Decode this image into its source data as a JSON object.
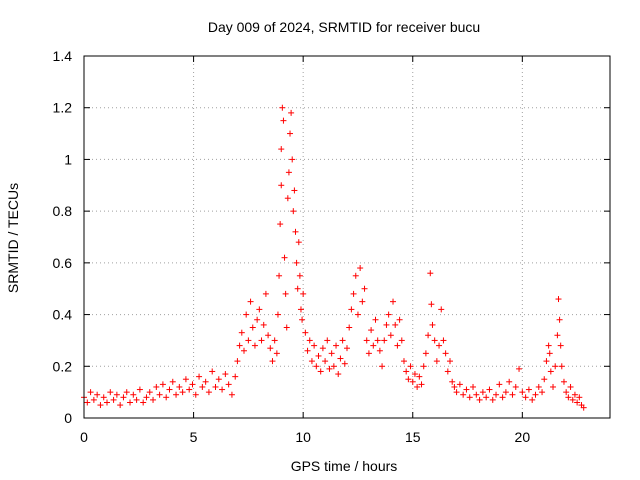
{
  "chart_data": {
    "type": "scatter",
    "title": "Day 009 of 2024, SRMTID for receiver bucu",
    "xlabel": "GPS time / hours",
    "ylabel": "SRMTID / TECUs",
    "xlim": [
      0,
      24
    ],
    "ylim": [
      0,
      1.4
    ],
    "xticks": [
      0,
      5,
      10,
      15,
      20
    ],
    "xtick_labels": [
      "0",
      "5",
      "10",
      "15",
      "20"
    ],
    "yticks": [
      0,
      0.2,
      0.4,
      0.6,
      0.8,
      1,
      1.2,
      1.4
    ],
    "ytick_labels": [
      "0",
      "0.2",
      "0.4",
      "0.6",
      "0.8",
      "1",
      "1.2",
      "1.4"
    ],
    "grid": true,
    "marker": "+",
    "color": "#ff0000",
    "series": [
      {
        "name": "SRMTID",
        "points": [
          [
            0.0,
            0.08
          ],
          [
            0.15,
            0.06
          ],
          [
            0.3,
            0.1
          ],
          [
            0.45,
            0.07
          ],
          [
            0.6,
            0.09
          ],
          [
            0.75,
            0.05
          ],
          [
            0.9,
            0.08
          ],
          [
            1.05,
            0.06
          ],
          [
            1.2,
            0.1
          ],
          [
            1.35,
            0.07
          ],
          [
            1.5,
            0.09
          ],
          [
            1.65,
            0.05
          ],
          [
            1.8,
            0.08
          ],
          [
            1.95,
            0.1
          ],
          [
            2.1,
            0.06
          ],
          [
            2.25,
            0.09
          ],
          [
            2.4,
            0.07
          ],
          [
            2.55,
            0.11
          ],
          [
            2.7,
            0.06
          ],
          [
            2.85,
            0.08
          ],
          [
            3.0,
            0.1
          ],
          [
            3.15,
            0.07
          ],
          [
            3.3,
            0.12
          ],
          [
            3.45,
            0.09
          ],
          [
            3.6,
            0.13
          ],
          [
            3.75,
            0.08
          ],
          [
            3.9,
            0.11
          ],
          [
            4.05,
            0.14
          ],
          [
            4.2,
            0.09
          ],
          [
            4.35,
            0.12
          ],
          [
            4.5,
            0.1
          ],
          [
            4.65,
            0.15
          ],
          [
            4.8,
            0.11
          ],
          [
            4.95,
            0.13
          ],
          [
            5.1,
            0.09
          ],
          [
            5.25,
            0.16
          ],
          [
            5.4,
            0.12
          ],
          [
            5.55,
            0.14
          ],
          [
            5.7,
            0.1
          ],
          [
            5.85,
            0.18
          ],
          [
            6.0,
            0.12
          ],
          [
            6.15,
            0.15
          ],
          [
            6.3,
            0.11
          ],
          [
            6.45,
            0.17
          ],
          [
            6.6,
            0.13
          ],
          [
            6.75,
            0.09
          ],
          [
            6.9,
            0.16
          ],
          [
            7.0,
            0.22
          ],
          [
            7.1,
            0.28
          ],
          [
            7.2,
            0.33
          ],
          [
            7.3,
            0.26
          ],
          [
            7.4,
            0.4
          ],
          [
            7.5,
            0.3
          ],
          [
            7.6,
            0.45
          ],
          [
            7.7,
            0.35
          ],
          [
            7.8,
            0.28
          ],
          [
            7.9,
            0.38
          ],
          [
            8.0,
            0.42
          ],
          [
            8.1,
            0.3
          ],
          [
            8.2,
            0.36
          ],
          [
            8.3,
            0.48
          ],
          [
            8.4,
            0.32
          ],
          [
            8.5,
            0.27
          ],
          [
            8.6,
            0.22
          ],
          [
            8.7,
            0.3
          ],
          [
            8.8,
            0.25
          ],
          [
            8.85,
            0.4
          ],
          [
            8.9,
            0.55
          ],
          [
            8.95,
            0.75
          ],
          [
            9.0,
            0.9
          ],
          [
            9.0,
            1.04
          ],
          [
            9.05,
            1.2
          ],
          [
            9.1,
            1.15
          ],
          [
            9.15,
            0.62
          ],
          [
            9.2,
            0.48
          ],
          [
            9.25,
            0.35
          ],
          [
            9.3,
            0.85
          ],
          [
            9.35,
            0.95
          ],
          [
            9.4,
            1.1
          ],
          [
            9.45,
            1.18
          ],
          [
            9.5,
            1.0
          ],
          [
            9.55,
            0.8
          ],
          [
            9.6,
            0.88
          ],
          [
            9.65,
            0.72
          ],
          [
            9.7,
            0.6
          ],
          [
            9.75,
            0.5
          ],
          [
            9.8,
            0.68
          ],
          [
            9.85,
            0.55
          ],
          [
            9.9,
            0.42
          ],
          [
            9.95,
            0.38
          ],
          [
            10.0,
            0.48
          ],
          [
            10.1,
            0.33
          ],
          [
            10.2,
            0.26
          ],
          [
            10.3,
            0.3
          ],
          [
            10.4,
            0.22
          ],
          [
            10.5,
            0.28
          ],
          [
            10.6,
            0.2
          ],
          [
            10.7,
            0.24
          ],
          [
            10.8,
            0.18
          ],
          [
            10.9,
            0.27
          ],
          [
            11.0,
            0.22
          ],
          [
            11.1,
            0.3
          ],
          [
            11.2,
            0.19
          ],
          [
            11.3,
            0.25
          ],
          [
            11.4,
            0.2
          ],
          [
            11.5,
            0.28
          ],
          [
            11.6,
            0.17
          ],
          [
            11.7,
            0.23
          ],
          [
            11.8,
            0.3
          ],
          [
            11.9,
            0.21
          ],
          [
            12.0,
            0.27
          ],
          [
            12.1,
            0.35
          ],
          [
            12.2,
            0.42
          ],
          [
            12.3,
            0.48
          ],
          [
            12.4,
            0.55
          ],
          [
            12.5,
            0.4
          ],
          [
            12.6,
            0.58
          ],
          [
            12.7,
            0.45
          ],
          [
            12.8,
            0.5
          ],
          [
            12.9,
            0.3
          ],
          [
            13.0,
            0.25
          ],
          [
            13.1,
            0.34
          ],
          [
            13.2,
            0.28
          ],
          [
            13.3,
            0.38
          ],
          [
            13.4,
            0.3
          ],
          [
            13.5,
            0.26
          ],
          [
            13.6,
            0.2
          ],
          [
            13.7,
            0.3
          ],
          [
            13.8,
            0.36
          ],
          [
            13.9,
            0.4
          ],
          [
            14.0,
            0.32
          ],
          [
            14.1,
            0.45
          ],
          [
            14.2,
            0.36
          ],
          [
            14.3,
            0.28
          ],
          [
            14.4,
            0.38
          ],
          [
            14.5,
            0.3
          ],
          [
            14.6,
            0.22
          ],
          [
            14.7,
            0.18
          ],
          [
            14.8,
            0.15
          ],
          [
            14.9,
            0.2
          ],
          [
            15.0,
            0.14
          ],
          [
            15.1,
            0.17
          ],
          [
            15.2,
            0.12
          ],
          [
            15.3,
            0.16
          ],
          [
            15.4,
            0.13
          ],
          [
            15.5,
            0.2
          ],
          [
            15.6,
            0.25
          ],
          [
            15.7,
            0.32
          ],
          [
            15.8,
            0.56
          ],
          [
            15.85,
            0.44
          ],
          [
            15.9,
            0.36
          ],
          [
            16.0,
            0.3
          ],
          [
            16.1,
            0.22
          ],
          [
            16.2,
            0.28
          ],
          [
            16.3,
            0.42
          ],
          [
            16.4,
            0.3
          ],
          [
            16.5,
            0.25
          ],
          [
            16.6,
            0.18
          ],
          [
            16.7,
            0.22
          ],
          [
            16.8,
            0.14
          ],
          [
            16.9,
            0.12
          ],
          [
            17.0,
            0.1
          ],
          [
            17.15,
            0.13
          ],
          [
            17.3,
            0.09
          ],
          [
            17.45,
            0.11
          ],
          [
            17.6,
            0.08
          ],
          [
            17.75,
            0.12
          ],
          [
            17.9,
            0.09
          ],
          [
            18.05,
            0.07
          ],
          [
            18.2,
            0.1
          ],
          [
            18.35,
            0.08
          ],
          [
            18.5,
            0.11
          ],
          [
            18.65,
            0.07
          ],
          [
            18.8,
            0.09
          ],
          [
            18.95,
            0.13
          ],
          [
            19.1,
            0.08
          ],
          [
            19.25,
            0.1
          ],
          [
            19.4,
            0.14
          ],
          [
            19.55,
            0.09
          ],
          [
            19.7,
            0.12
          ],
          [
            19.85,
            0.19
          ],
          [
            20.0,
            0.1
          ],
          [
            20.15,
            0.08
          ],
          [
            20.3,
            0.11
          ],
          [
            20.45,
            0.07
          ],
          [
            20.6,
            0.09
          ],
          [
            20.75,
            0.12
          ],
          [
            20.9,
            0.1
          ],
          [
            21.0,
            0.15
          ],
          [
            21.1,
            0.22
          ],
          [
            21.2,
            0.28
          ],
          [
            21.25,
            0.25
          ],
          [
            21.3,
            0.18
          ],
          [
            21.4,
            0.12
          ],
          [
            21.5,
            0.2
          ],
          [
            21.6,
            0.32
          ],
          [
            21.65,
            0.46
          ],
          [
            21.7,
            0.38
          ],
          [
            21.75,
            0.28
          ],
          [
            21.8,
            0.2
          ],
          [
            21.9,
            0.14
          ],
          [
            22.0,
            0.1
          ],
          [
            22.1,
            0.08
          ],
          [
            22.2,
            0.12
          ],
          [
            22.3,
            0.07
          ],
          [
            22.4,
            0.09
          ],
          [
            22.5,
            0.06
          ],
          [
            22.6,
            0.08
          ],
          [
            22.7,
            0.05
          ],
          [
            22.8,
            0.04
          ]
        ]
      }
    ]
  }
}
